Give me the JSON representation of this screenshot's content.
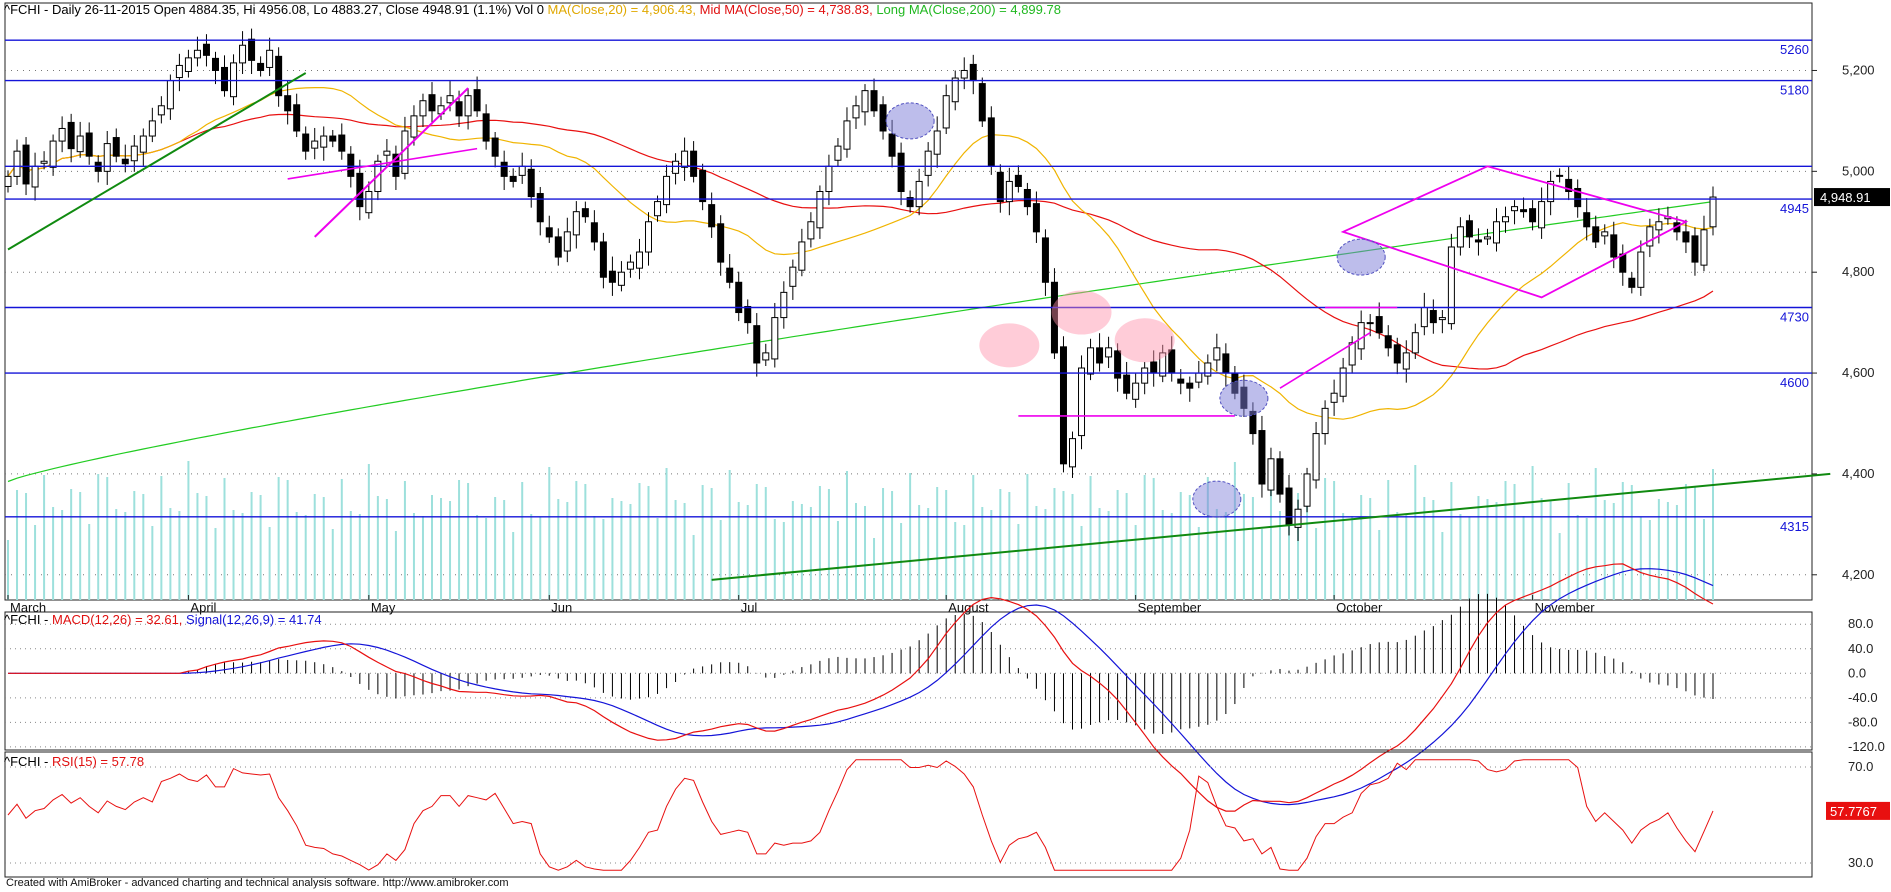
{
  "header": {
    "main_prefix": "^FCHI - Daily 26-11-2015 Open 4884.35, Hi 4956.08, Lo 4883.27, Close 4948.91 (1.1%) Vol 0 ",
    "ma20": "MA(Close,20) = 4,906.43, ",
    "ma50": "Mid MA(Close,50) = 4,738.83, ",
    "ma200": "Long MA(Close,200) = 4,899.78",
    "macd_prefix": "^FCHI - ",
    "macd_label": "MACD(12,26) = 32.61, ",
    "signal_label": "Signal(12,26,9) = 41.74",
    "rsi_prefix": "^FCHI - ",
    "rsi_label": "RSI(15) = 57.78"
  },
  "footer": "Created with AmiBroker - advanced charting and technical analysis software. http://www.amibroker.com",
  "colors": {
    "up": "#ffffff",
    "down": "#000000",
    "ma20": "#f0b400",
    "ma50": "#e81010",
    "ma200": "#22cc22",
    "level": "#1414d8",
    "pattern": "#ee00ee",
    "trend": "#108a10",
    "volume": "#9de0dc",
    "macd": "#e81010",
    "signal": "#1414d8",
    "rsi": "#e81010"
  },
  "chart_data": [
    {
      "type": "candlestick",
      "title": "^FCHI - Daily",
      "ylim": [
        4150,
        5310
      ],
      "y_ticks": [
        4200,
        4400,
        4600,
        4800,
        5000,
        5200
      ],
      "y_tick_labels": [
        "4,200",
        "4,400",
        "4,600",
        "4,800",
        "5,000",
        "5,200"
      ],
      "last_price_label": "4,948.91",
      "months": [
        {
          "label": "March",
          "i": 0
        },
        {
          "label": "April",
          "i": 20
        },
        {
          "label": "May",
          "i": 40
        },
        {
          "label": "Jun",
          "i": 60
        },
        {
          "label": "Jul",
          "i": 81
        },
        {
          "label": "August",
          "i": 104
        },
        {
          "label": "September",
          "i": 125
        },
        {
          "label": "October",
          "i": 147
        },
        {
          "label": "November",
          "i": 169
        }
      ],
      "levels": [
        {
          "value": 5260,
          "label": "5260"
        },
        {
          "value": 5180,
          "label": "5180"
        },
        {
          "value": 5010,
          "label": ""
        },
        {
          "value": 4945,
          "label": "4945"
        },
        {
          "value": 4730,
          "label": "4730"
        },
        {
          "value": 4600,
          "label": "4600"
        },
        {
          "value": 4315,
          "label": "4315"
        }
      ],
      "closes": [
        4990,
        5040,
        4975,
        5010,
        5020,
        5060,
        5085,
        5045,
        5070,
        5030,
        5000,
        5055,
        5030,
        5015,
        5050,
        5070,
        5100,
        5130,
        5180,
        5210,
        5225,
        5240,
        5230,
        5200,
        5160,
        5215,
        5250,
        5220,
        5200,
        5240,
        5150,
        5120,
        5080,
        5040,
        5060,
        5070,
        5060,
        5040,
        4990,
        4930,
        4960,
        5020,
        5040,
        4990,
        5080,
        5110,
        5140,
        5120,
        5130,
        5150,
        5110,
        5150,
        5120,
        5060,
        5030,
        4990,
        4980,
        5010,
        4950,
        4900,
        4870,
        4830,
        4880,
        4920,
        4910,
        4860,
        4790,
        4780,
        4800,
        4820,
        4840,
        4900,
        4940,
        4990,
        5020,
        5040,
        4990,
        4940,
        4890,
        4820,
        4780,
        4720,
        4700,
        4620,
        4640,
        4710,
        4760,
        4810,
        4860,
        4900,
        4960,
        5010,
        5050,
        5100,
        5130,
        5160,
        5120,
        5080,
        5030,
        4960,
        4930,
        4980,
        5040,
        5080,
        5150,
        5185,
        5200,
        5180,
        5100,
        5010,
        4940,
        4980,
        4970,
        4930,
        4880,
        4780,
        4640,
        4420,
        4470,
        4610,
        4650,
        4620,
        4650,
        4590,
        4560,
        4580,
        4610,
        4600,
        4640,
        4600,
        4580,
        4570,
        4600,
        4620,
        4650,
        4600,
        4560,
        4530,
        4480,
        4380,
        4430,
        4360,
        4300,
        4330,
        4400,
        4480,
        4530,
        4560,
        4610,
        4660,
        4700,
        4700,
        4680,
        4650,
        4620,
        4640,
        4680,
        4730,
        4700,
        4710,
        4850,
        4890,
        4870,
        4860,
        4870,
        4900,
        4910,
        4930,
        4920,
        4900,
        4940,
        4980,
        4990,
        4960,
        4930,
        4890,
        4860,
        4880,
        4830,
        4800,
        4770,
        4840,
        4890,
        4900,
        4910,
        4880,
        4860,
        4820,
        4884,
        4949
      ],
      "ma200_series": [
        4385,
        4940
      ]
    },
    {
      "type": "line",
      "title": "MACD(12,26)",
      "ylim": [
        -125,
        95
      ],
      "y_ticks": [
        80,
        40,
        0,
        -40,
        -80,
        -120
      ],
      "y_tick_labels": [
        "80.0",
        "40.0",
        "0.0",
        "-40.0",
        "-80.0",
        "-120.0"
      ],
      "series": [
        {
          "name": "MACD(12,26)"
        },
        {
          "name": "Signal(12,26,9)"
        }
      ]
    },
    {
      "type": "line",
      "title": "RSI(15)",
      "ylim": [
        25,
        75
      ],
      "y_ticks": [
        70,
        30
      ],
      "y_tick_labels": [
        "70.0",
        "30.0"
      ],
      "last_value_label": "57.7767"
    }
  ]
}
